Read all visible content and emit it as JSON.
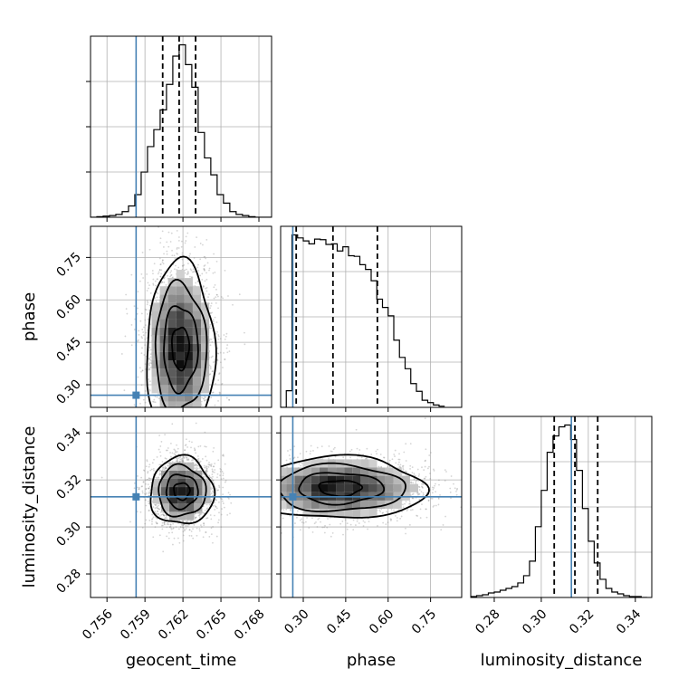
{
  "chart_data": {
    "type": "corner",
    "parameters": [
      "geocent_time",
      "phase",
      "luminosity_distance"
    ],
    "truth": {
      "geocent_time": 0.7583,
      "phase": 0.263,
      "luminosity_distance": 0.3128,
      "color": "#4682b4"
    },
    "ranges": {
      "geocent_time": [
        0.7547,
        0.769
      ],
      "phase": [
        0.22,
        0.86
      ],
      "luminosity_distance": [
        0.27,
        0.347
      ]
    },
    "ticks": {
      "geocent_time": [
        0.756,
        0.759,
        0.762,
        0.765,
        0.768
      ],
      "phase": [
        0.3,
        0.45,
        0.6,
        0.75
      ],
      "luminosity_distance": [
        0.28,
        0.3,
        0.32,
        0.34
      ]
    },
    "tick_labels": {
      "geocent_time": [
        "0.756",
        "0.759",
        "0.762",
        "0.765",
        "0.768"
      ],
      "phase": [
        "0.30",
        "0.45",
        "0.60",
        "0.75"
      ],
      "luminosity_distance": [
        "0.28",
        "0.30",
        "0.32",
        "0.34"
      ]
    },
    "quantiles": {
      "geocent_time": [
        0.7604,
        0.7617,
        0.763
      ],
      "phase": [
        0.275,
        0.405,
        0.562
      ],
      "luminosity_distance": [
        0.3055,
        0.3143,
        0.324
      ]
    },
    "histograms": {
      "geocent_time": {
        "bin_edges": [
          0.7547,
          0.7552,
          0.7557,
          0.7562,
          0.7567,
          0.7572,
          0.7577,
          0.7582,
          0.7587,
          0.7592,
          0.7597,
          0.7602,
          0.7607,
          0.7612,
          0.7617,
          0.7622,
          0.7627,
          0.7632,
          0.7637,
          0.7642,
          0.7647,
          0.7652,
          0.7657,
          0.7662,
          0.7667,
          0.7672,
          0.7677,
          0.7682,
          0.7687,
          0.769
        ],
        "counts": [
          0,
          1,
          2,
          3,
          5,
          10,
          20,
          40,
          80,
          125,
          155,
          190,
          235,
          285,
          305,
          270,
          230,
          150,
          105,
          75,
          40,
          25,
          10,
          5,
          3,
          1,
          0,
          0,
          0
        ]
      },
      "phase": {
        "bin_edges": [
          0.22,
          0.24,
          0.26,
          0.28,
          0.3,
          0.32,
          0.34,
          0.36,
          0.38,
          0.4,
          0.42,
          0.44,
          0.46,
          0.48,
          0.5,
          0.52,
          0.54,
          0.56,
          0.58,
          0.6,
          0.62,
          0.64,
          0.66,
          0.68,
          0.7,
          0.72,
          0.74,
          0.76,
          0.78,
          0.8
        ],
        "counts": [
          0,
          28,
          290,
          285,
          280,
          275,
          283,
          282,
          274,
          275,
          263,
          270,
          255,
          254,
          240,
          232,
          213,
          182,
          168,
          154,
          113,
          84,
          65,
          40,
          27,
          12,
          8,
          4,
          2
        ]
      },
      "luminosity_distance": {
        "bin_edges": [
          0.27,
          0.2725,
          0.275,
          0.2775,
          0.28,
          0.2825,
          0.285,
          0.2875,
          0.29,
          0.2925,
          0.295,
          0.2975,
          0.3,
          0.3025,
          0.305,
          0.3075,
          0.31,
          0.3125,
          0.315,
          0.3175,
          0.32,
          0.3225,
          0.325,
          0.3275,
          0.33,
          0.3325,
          0.335,
          0.3375,
          0.34,
          0.3425,
          0.345
        ],
        "counts": [
          1,
          2,
          3,
          5,
          6,
          8,
          10,
          12,
          16,
          24,
          40,
          78,
          118,
          160,
          178,
          188,
          190,
          174,
          140,
          98,
          62,
          38,
          20,
          10,
          6,
          4,
          2,
          1,
          1,
          0
        ]
      }
    },
    "density": {
      "phase_vs_geocent_time": {
        "center": [
          0.7618,
          0.43
        ],
        "sigma": [
          0.00135,
          0.15
        ],
        "contour_levels_sigma": [
          0.5,
          1.0,
          1.5,
          2.0
        ]
      },
      "luminosity_distance_vs_geocent_time": {
        "center": [
          0.7619,
          0.3152
        ],
        "sigma": [
          0.00125,
          0.0072
        ],
        "contour_levels_sigma": [
          0.5,
          1.0,
          1.5,
          2.0
        ]
      },
      "luminosity_distance_vs_phase": {
        "center": [
          0.43,
          0.3165
        ],
        "sigma": [
          0.15,
          0.0066
        ],
        "contour_levels_sigma": [
          0.5,
          1.0,
          1.5,
          2.0
        ]
      }
    },
    "grid": true,
    "legend": "none"
  }
}
